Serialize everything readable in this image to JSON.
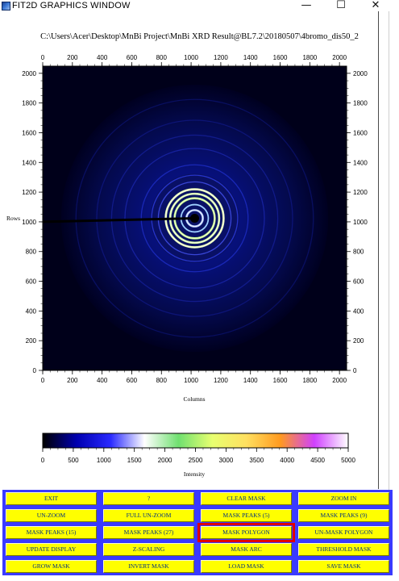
{
  "window": {
    "title": "FIT2D GRAPHICS WINDOW",
    "icon": "fit2d-app-icon",
    "minimize_symbol": "—",
    "maximize_symbol": "☐",
    "close_symbol": "✕"
  },
  "file_path": "C:\\Users\\Acer\\Desktop\\MnBi Project\\MnBi XRD Result@BL7.2\\20180507\\4bromo_dis50_2",
  "chart_data": [
    {
      "type": "heatmap",
      "title": "",
      "xlabel": "Columns",
      "ylabel": "Rows",
      "xlim": [
        0,
        2048
      ],
      "ylim": [
        0,
        2048
      ],
      "x_ticks": [
        0,
        200,
        400,
        600,
        800,
        1000,
        1200,
        1400,
        1600,
        1800,
        2000
      ],
      "y_ticks": [
        0,
        200,
        400,
        600,
        800,
        1000,
        1200,
        1400,
        1600,
        1800,
        2000
      ],
      "beam_center": [
        1024,
        1024
      ],
      "rings": [
        {
          "radius": 55,
          "color": "#b0c8ff",
          "intensity": "high"
        },
        {
          "radius": 92,
          "color": "#9fd0ff",
          "intensity": "mid"
        },
        {
          "radius": 135,
          "color": "#c8ff80",
          "intensity": "high"
        },
        {
          "radius": 165,
          "color": "#d8ffa0",
          "intensity": "high"
        },
        {
          "radius": 195,
          "color": "#e8ffb0",
          "intensity": "high"
        },
        {
          "radius": 245,
          "color": "#4a58ff",
          "intensity": "low"
        },
        {
          "radius": 290,
          "color": "#3040ee",
          "intensity": "low"
        },
        {
          "radius": 360,
          "color": "#2030cc",
          "intensity": "low"
        },
        {
          "radius": 470,
          "color": "#1c28b0",
          "intensity": "low"
        },
        {
          "radius": 560,
          "color": "#15209a",
          "intensity": "low"
        },
        {
          "radius": 660,
          "color": "#101884",
          "intensity": "low"
        },
        {
          "radius": 800,
          "color": "#0c1370",
          "intensity": "low"
        }
      ],
      "beamstop": {
        "from": [
          0,
          1000
        ],
        "to": [
          1024,
          1024
        ]
      },
      "colors": {
        "background": "#000018",
        "halo": "#0a1060"
      }
    },
    {
      "type": "heatmap",
      "title": "",
      "xlabel": "Intensity",
      "xlim": [
        0,
        5000
      ],
      "x_ticks": [
        0,
        500,
        1000,
        1500,
        2000,
        2500,
        3000,
        3500,
        4000,
        4500,
        5000
      ],
      "colormap": [
        "#000000",
        "#0000b0",
        "#2a2aff",
        "#ffffff",
        "#70e070",
        "#e8ff70",
        "#ffe060",
        "#ff9a20",
        "#d040ff",
        "#ffffff"
      ]
    }
  ],
  "buttons": [
    {
      "label": "EXIT",
      "name": "exit-button"
    },
    {
      "label": "?",
      "name": "help-button"
    },
    {
      "label": "CLEAR MASK",
      "name": "clear-mask-button"
    },
    {
      "label": "ZOOM IN",
      "name": "zoom-in-button"
    },
    {
      "label": "UN-ZOOM",
      "name": "un-zoom-button"
    },
    {
      "label": "FULL UN-ZOOM",
      "name": "full-un-zoom-button"
    },
    {
      "label": "MASK PEAKS (5)",
      "name": "mask-peaks-5-button"
    },
    {
      "label": "MASK PEAKS (9)",
      "name": "mask-peaks-9-button"
    },
    {
      "label": "MASK PEAKS (15)",
      "name": "mask-peaks-15-button"
    },
    {
      "label": "MASK PEAKS (27)",
      "name": "mask-peaks-27-button"
    },
    {
      "label": "MASK POLYGON",
      "name": "mask-polygon-button",
      "highlighted": true
    },
    {
      "label": "UN-MASK POLYGON",
      "name": "un-mask-polygon-button"
    },
    {
      "label": "UPDATE DISPLAY",
      "name": "update-display-button"
    },
    {
      "label": "Z-SCALING",
      "name": "z-scaling-button"
    },
    {
      "label": "MASK ARC",
      "name": "mask-arc-button"
    },
    {
      "label": "THRESHOLD MASK",
      "name": "threshold-mask-button"
    },
    {
      "label": "GROW MASK",
      "name": "grow-mask-button"
    },
    {
      "label": "INVERT MASK",
      "name": "invert-mask-button"
    },
    {
      "label": "LOAD MASK",
      "name": "load-mask-button"
    },
    {
      "label": "SAVE MASK",
      "name": "save-mask-button"
    }
  ],
  "colors": {
    "button_face": "#ffff00",
    "button_text": "#003080",
    "panel_bg": "#3a3aff",
    "highlight": "#e00000"
  }
}
